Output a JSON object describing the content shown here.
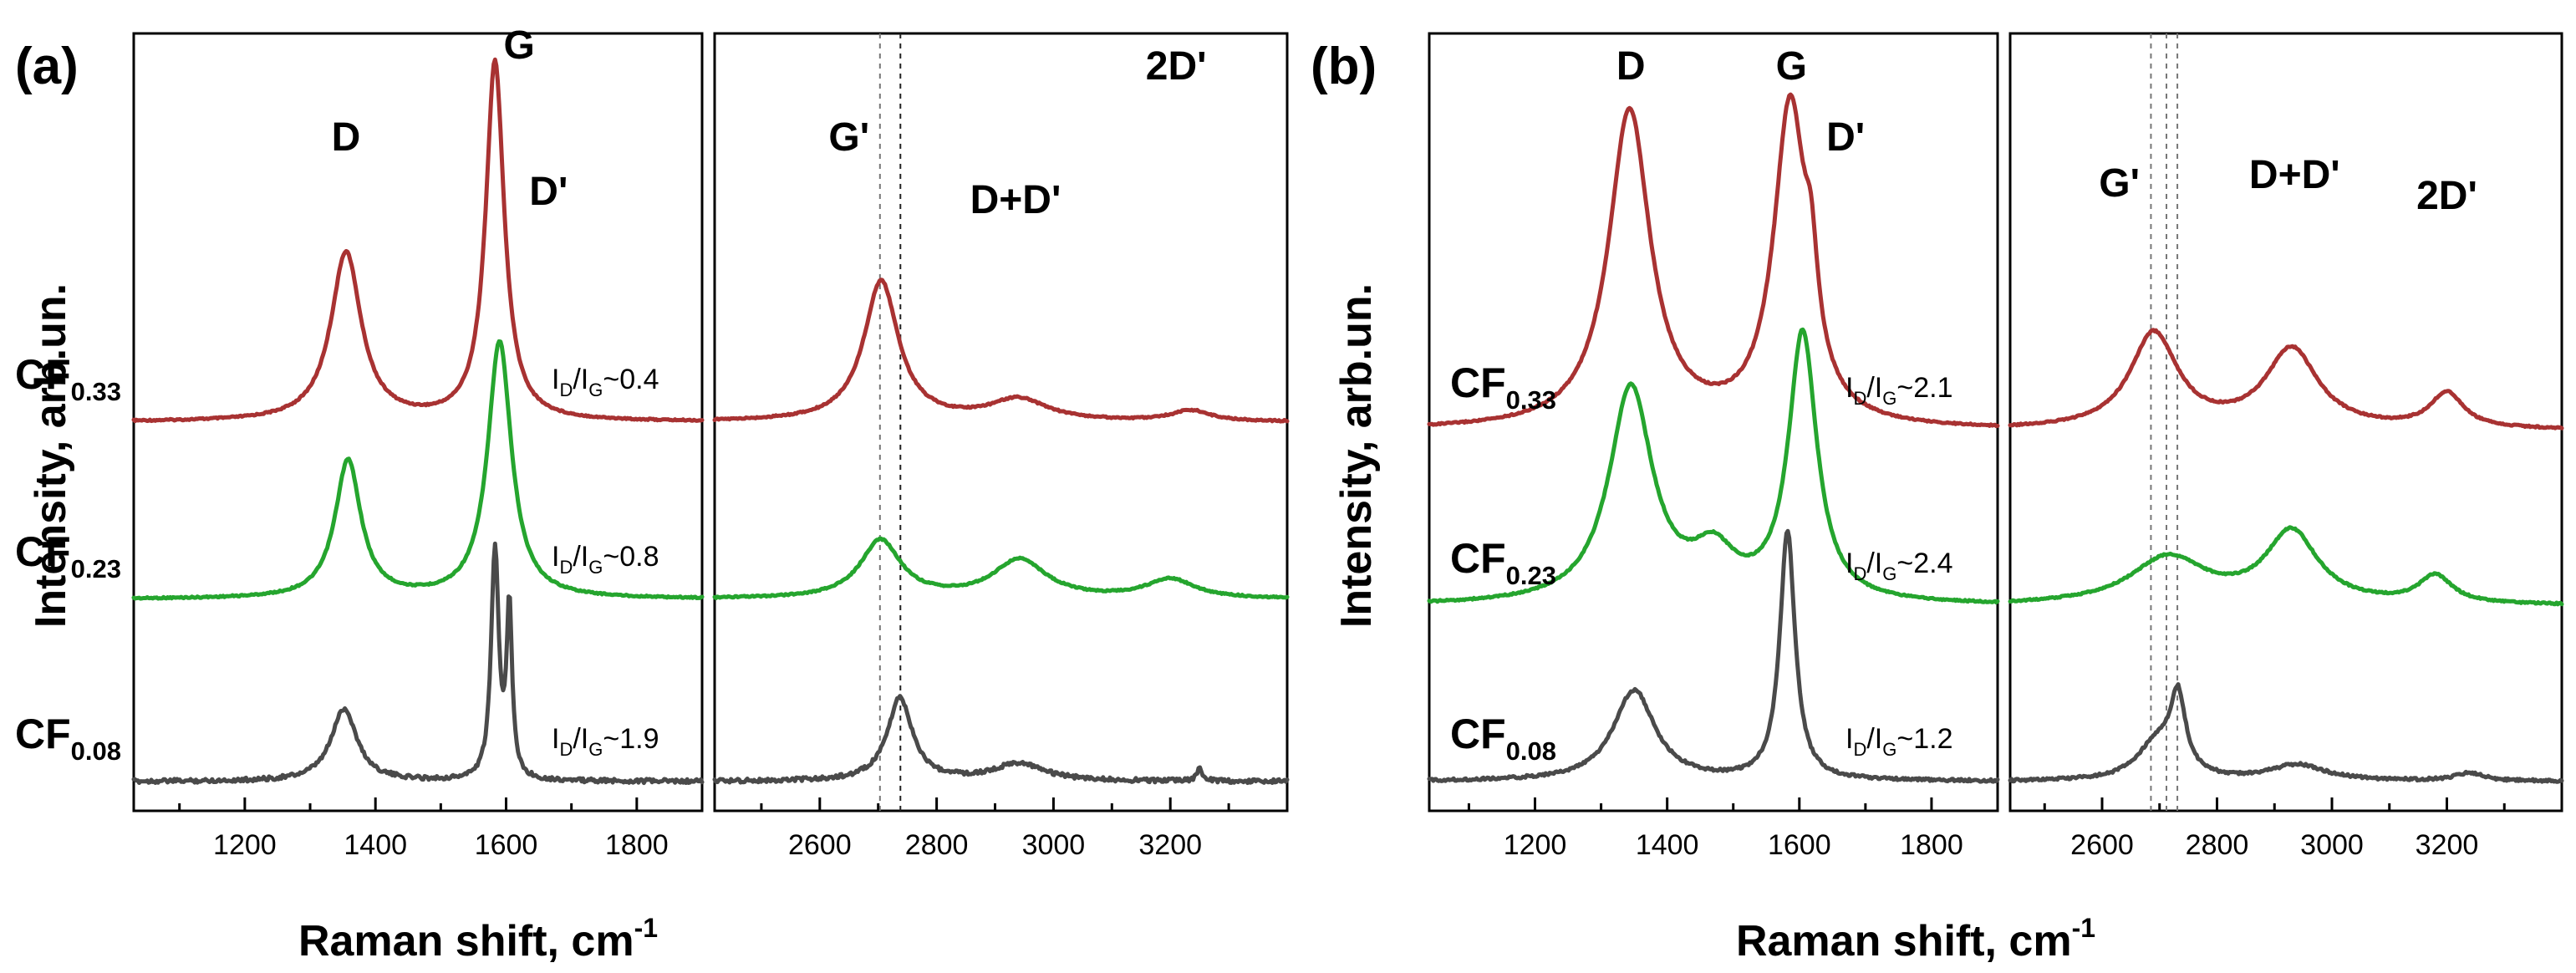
{
  "chart_data": [
    {
      "panel_label": "(a)",
      "type": "line",
      "xlabel": "Raman shift, cm",
      "xlabel_sup": "-1",
      "ylabel": "Intensity, arb.un.",
      "y_ticks": "none",
      "windows": [
        {
          "xlim": [
            1030,
            1900
          ],
          "ticks": [
            1200,
            1400,
            1600,
            1800
          ],
          "tick_labels": [
            "1200",
            "1400",
            "1600",
            "1800"
          ]
        },
        {
          "xlim": [
            2420,
            3400
          ],
          "ticks": [
            2600,
            2800,
            3000,
            3200
          ],
          "tick_labels": [
            "2600",
            "2800",
            "3000",
            "3200"
          ]
        }
      ],
      "guide_lines": [
        2703,
        2738
      ],
      "peak_labels": [
        {
          "text": "D",
          "x": 1355
        },
        {
          "text": "G",
          "x": 1620
        },
        {
          "text": "D'",
          "x": 1665
        },
        {
          "text": "G'",
          "x": 2650
        },
        {
          "text": "D+D'",
          "x": 2935
        },
        {
          "text": "2D'",
          "x": 3210
        }
      ],
      "series": [
        {
          "name": "CF",
          "subscript": "0.33",
          "ratio_text": "I",
          "ratio_sub1": "D",
          "ratio_mid": "/I",
          "ratio_sub2": "G",
          "ratio_value": "~0.4",
          "color": "#a83232",
          "peaks": [
            {
              "center": 1355,
              "height": 0.47,
              "width": 28
            },
            {
              "center": 1583,
              "height": 1.0,
              "width": 17
            },
            {
              "center": 2705,
              "height": 0.39,
              "width": 36
            },
            {
              "center": 2940,
              "height": 0.06,
              "width": 60
            },
            {
              "center": 3235,
              "height": 0.03,
              "width": 40
            }
          ]
        },
        {
          "name": "CF",
          "subscript": "0.23",
          "ratio_text": "I",
          "ratio_sub1": "D",
          "ratio_mid": "/I",
          "ratio_sub2": "G",
          "ratio_value": "~0.8",
          "color": "#25a52e",
          "peaks": [
            {
              "center": 1358,
              "height": 0.5,
              "width": 24
            },
            {
              "center": 1590,
              "height": 0.93,
              "width": 22
            },
            {
              "center": 2704,
              "height": 0.21,
              "width": 42
            },
            {
              "center": 2942,
              "height": 0.14,
              "width": 55
            },
            {
              "center": 3200,
              "height": 0.07,
              "width": 50
            }
          ]
        },
        {
          "name": "CF",
          "subscript": "0.08",
          "ratio_text": "I",
          "ratio_sub1": "D",
          "ratio_mid": "/I",
          "ratio_sub2": "G",
          "ratio_value": "~1.9",
          "color": "#4a4a4a",
          "peaks": [
            {
              "center": 1352,
              "height": 0.3,
              "width": 24
            },
            {
              "center": 1583,
              "height": 0.95,
              "width": 7
            },
            {
              "center": 1605,
              "height": 0.7,
              "width": 5
            },
            {
              "center": 2737,
              "height": 0.34,
              "width": 26
            },
            {
              "center": 2940,
              "height": 0.07,
              "width": 55
            },
            {
              "center": 3250,
              "height": 0.05,
              "width": 6
            }
          ]
        }
      ]
    },
    {
      "panel_label": "(b)",
      "type": "line",
      "xlabel": "Raman shift, cm",
      "xlabel_sup": "-1",
      "ylabel": "Intensity, arb.un.",
      "y_ticks": "none",
      "windows": [
        {
          "xlim": [
            1040,
            1900
          ],
          "ticks": [
            1200,
            1400,
            1600,
            1800
          ],
          "tick_labels": [
            "1200",
            "1400",
            "1600",
            "1800"
          ]
        },
        {
          "xlim": [
            2440,
            3400
          ],
          "ticks": [
            2600,
            2800,
            3000,
            3200
          ],
          "tick_labels": [
            "2600",
            "2800",
            "3000",
            "3200"
          ]
        }
      ],
      "guide_lines": [
        2685,
        2712,
        2731
      ],
      "peak_labels": [
        {
          "text": "D",
          "x": 1345
        },
        {
          "text": "G",
          "x": 1588
        },
        {
          "text": "D'",
          "x": 1670
        },
        {
          "text": "G'",
          "x": 2630
        },
        {
          "text": "D+D'",
          "x": 2935
        },
        {
          "text": "2D'",
          "x": 3200
        }
      ],
      "series": [
        {
          "name": "CF",
          "subscript": "0.33",
          "ratio_text": "I",
          "ratio_sub1": "D",
          "ratio_mid": "/I",
          "ratio_sub2": "G",
          "ratio_value": "~2.1",
          "color": "#a83232",
          "peaks": [
            {
              "center": 1343,
              "height": 1.0,
              "width": 38
            },
            {
              "center": 1586,
              "height": 1.0,
              "width": 30
            },
            {
              "center": 1618,
              "height": 0.25,
              "width": 12
            },
            {
              "center": 2690,
              "height": 0.3,
              "width": 50
            },
            {
              "center": 2930,
              "height": 0.25,
              "width": 55
            },
            {
              "center": 3200,
              "height": 0.11,
              "width": 35
            }
          ]
        },
        {
          "name": "CF",
          "subscript": "0.23",
          "ratio_text": "I",
          "ratio_sub1": "D",
          "ratio_mid": "/I",
          "ratio_sub2": "G",
          "ratio_value": "~2.4",
          "color": "#25a52e",
          "peaks": [
            {
              "center": 1345,
              "height": 0.78,
              "width": 40
            },
            {
              "center": 1470,
              "height": 0.16,
              "width": 40
            },
            {
              "center": 1605,
              "height": 0.97,
              "width": 26
            },
            {
              "center": 2715,
              "height": 0.17,
              "width": 80
            },
            {
              "center": 2930,
              "height": 0.26,
              "width": 55
            },
            {
              "center": 3180,
              "height": 0.1,
              "width": 35
            }
          ]
        },
        {
          "name": "CF",
          "subscript": "0.08",
          "ratio_text": "I",
          "ratio_sub1": "D",
          "ratio_mid": "/I",
          "ratio_sub2": "G",
          "ratio_value": "~1.2",
          "color": "#4a4a4a",
          "peaks": [
            {
              "center": 1350,
              "height": 0.34,
              "width": 38
            },
            {
              "center": 1582,
              "height": 0.93,
              "width": 14
            },
            {
              "center": 2695,
              "height": 0.14,
              "width": 40
            },
            {
              "center": 2732,
              "height": 0.28,
              "width": 16
            },
            {
              "center": 2940,
              "height": 0.06,
              "width": 60
            },
            {
              "center": 3240,
              "height": 0.03,
              "width": 30
            }
          ]
        }
      ]
    }
  ]
}
